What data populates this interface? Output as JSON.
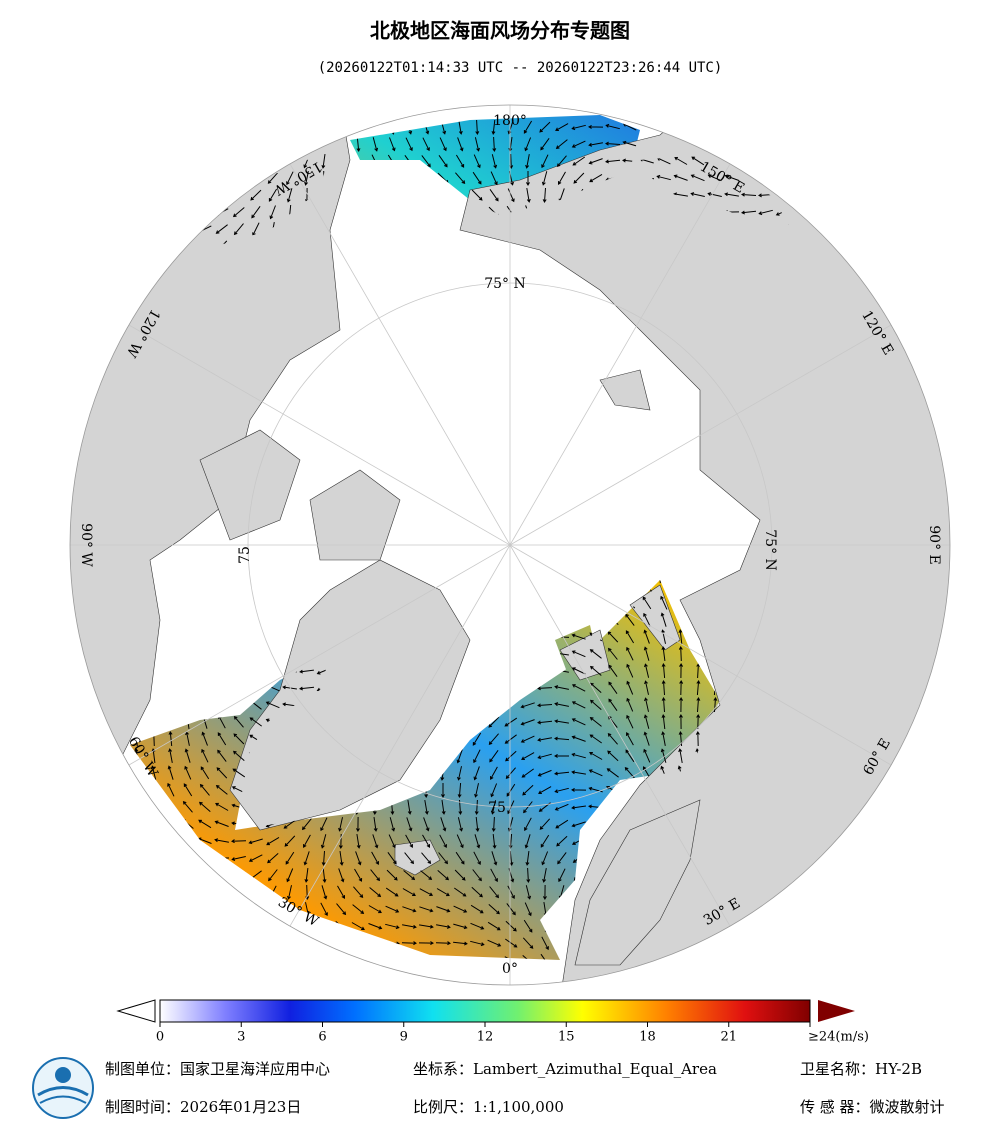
{
  "header": {
    "title": "北极地区海面风场分布专题图",
    "subtitle": "(20260122T01:14:33 UTC -- 20260122T23:26:44 UTC)"
  },
  "map": {
    "longitude_labels": [
      "180°",
      "150° E",
      "120° E",
      "90° E",
      "60° E",
      "30° E",
      "0°",
      "30° W",
      "60° W",
      "90° W",
      "120° W",
      "150° W"
    ],
    "latitude_labels": [
      "75° N",
      "75° N",
      "75",
      "75"
    ]
  },
  "colorbar": {
    "lim": [
      0,
      24
    ],
    "ticks": [
      0,
      3,
      6,
      9,
      12,
      15,
      18,
      21,
      {
        "value": 24,
        "label": "≥24(m/s)"
      }
    ]
  },
  "footer": {
    "producer": "制图单位：国家卫星海洋应用中心",
    "crs": "坐标系：Lambert_Azimuthal_Equal_Area",
    "satellite": "卫星名称：HY-2B",
    "time": "制图时间：2026年01月23日",
    "scale": "比例尺：1:1,100,000",
    "sensor": "传 感 器：微波散射计"
  }
}
